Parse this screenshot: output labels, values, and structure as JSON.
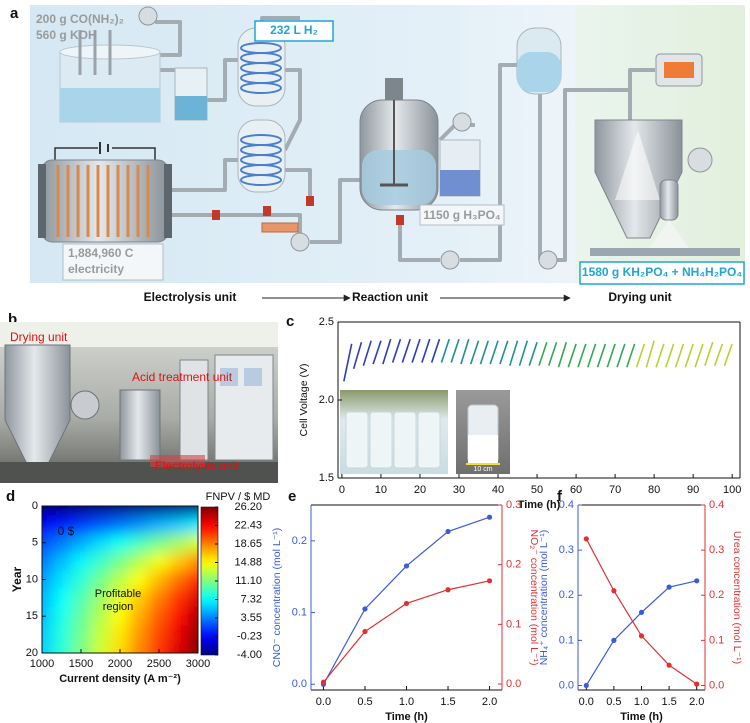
{
  "diagram": {
    "panel_label": "a",
    "feed_lines": [
      "200 g CO(NH₂)₂",
      "560 g KOH"
    ],
    "hydrogen": "232 L H₂",
    "charge_lines": [
      "1,884,960 C",
      "electricity"
    ],
    "acid": "1150 g  H₃PO₄",
    "product": "1580 g KH₂PO₄ + NH₄H₂PO₄",
    "units": [
      "Electrolysis unit",
      "Reaction unit",
      "Drying unit"
    ]
  },
  "photo": {
    "panel_label": "b",
    "labels": [
      "Drying unit",
      "Acid treatment unit",
      "Electrolysis unit"
    ]
  },
  "chart_data": [
    {
      "type": "line",
      "panel_label": "c",
      "xlabel": "Time (h)",
      "ylabel": "Cell Voltage (V)",
      "inset_label": "10 cm",
      "xlim": [
        -1,
        102
      ],
      "ylim": [
        1.5,
        2.5
      ],
      "xticks": [
        0,
        10,
        20,
        30,
        40,
        50,
        60,
        70,
        80,
        90,
        100
      ],
      "yticks": [
        1.5,
        {
          "value": 2.0,
          "label": "2.0"
        },
        2.5
      ],
      "markers": false,
      "series": [
        {
          "color": "#2b3fb8",
          "x": [
            0.5,
            2.5,
            2.7,
            3,
            5,
            5.2,
            5.5,
            7.5,
            7.7,
            8,
            10,
            10.2,
            10.5,
            12.5,
            12.7,
            13,
            15,
            15.2,
            15.5,
            17.5,
            17.7,
            18,
            20,
            20.2,
            20.5,
            22.5,
            22.7,
            23,
            25,
            25.2
          ],
          "values": [
            2.12,
            2.36,
            null,
            2.2,
            2.37,
            null,
            2.22,
            2.38,
            null,
            2.23,
            2.38,
            null,
            2.23,
            2.39,
            null,
            2.24,
            2.39,
            null,
            2.24,
            2.39,
            null,
            2.24,
            2.39,
            null,
            2.24,
            2.39,
            null,
            2.24,
            2.39,
            null
          ]
        },
        {
          "color": "#1f8f9a",
          "x": [
            25.5,
            27.5,
            27.7,
            28,
            30,
            30.2,
            30.5,
            32.5,
            32.7,
            33,
            35,
            35.2,
            35.5,
            37.5,
            37.7,
            38,
            40,
            40.2,
            40.5,
            42.5,
            42.7,
            43,
            45,
            45.2,
            45.5,
            47.5,
            47.7,
            48,
            50,
            50.2
          ],
          "values": [
            2.24,
            2.39,
            null,
            2.24,
            2.39,
            null,
            2.23,
            2.39,
            null,
            2.23,
            2.38,
            null,
            2.23,
            2.38,
            null,
            2.23,
            2.38,
            null,
            2.23,
            2.38,
            null,
            2.22,
            2.38,
            null,
            2.22,
            2.38,
            null,
            2.22,
            2.37,
            null
          ]
        },
        {
          "color": "#34a853",
          "x": [
            50.5,
            52.5,
            52.7,
            53,
            55,
            55.2,
            55.5,
            57.5,
            57.7,
            58,
            60,
            60.2,
            60.5,
            62.5,
            62.7,
            63,
            65,
            65.2,
            65.5,
            67.5,
            67.7,
            68,
            70,
            70.2,
            70.5,
            72.5,
            72.7,
            73,
            75,
            75.2
          ],
          "values": [
            2.22,
            2.37,
            null,
            2.22,
            2.37,
            null,
            2.21,
            2.37,
            null,
            2.21,
            2.36,
            null,
            2.21,
            2.36,
            null,
            2.21,
            2.36,
            null,
            2.21,
            2.36,
            null,
            2.21,
            2.36,
            null,
            2.21,
            2.36,
            null,
            2.21,
            2.36,
            null
          ]
        },
        {
          "color": "#b5d334",
          "x": [
            75.5,
            77.5,
            77.7,
            78,
            80,
            80.2,
            80.5,
            82.5,
            82.7,
            83,
            85,
            85.2,
            85.5,
            87.5,
            87.7,
            88,
            90,
            90.2,
            90.5,
            92.5,
            92.7,
            93,
            95,
            95.2,
            95.5,
            97.5,
            97.7,
            98,
            100,
            100.2
          ],
          "values": [
            2.21,
            2.36,
            null,
            2.21,
            2.38,
            null,
            2.21,
            2.36,
            null,
            2.21,
            2.36,
            null,
            2.21,
            2.36,
            null,
            2.21,
            2.36,
            null,
            2.21,
            2.36,
            null,
            2.22,
            2.37,
            null,
            2.22,
            2.36,
            null,
            2.22,
            2.36,
            null
          ]
        }
      ]
    },
    {
      "type": "heatmap",
      "panel_label": "d",
      "xlabel": "Current density (A m⁻²)",
      "ylabel": "Year",
      "colorbar_label": "FNPV / $ MD",
      "zero_contour_label": "0 $",
      "region_label": [
        "Profitable",
        "region"
      ],
      "colormap": "jet",
      "xlim": [
        1000,
        3000
      ],
      "ylim": [
        20,
        0
      ],
      "xticks": [
        1000,
        1500,
        2000,
        2500,
        3000
      ],
      "yticks": [
        0,
        5,
        10,
        15,
        20
      ],
      "clim": [
        -4,
        26.2
      ],
      "colorbar_ticks": [
        {
          "value": 26.2,
          "label": "26.20"
        },
        22.43,
        18.65,
        14.88,
        {
          "value": 11.1,
          "label": "11.10"
        },
        7.32,
        3.55,
        -0.23,
        {
          "value": -4,
          "label": "-4.00"
        }
      ],
      "x": [
        1000,
        1250,
        1500,
        1750,
        2000,
        2250,
        2500,
        2750,
        3000
      ],
      "y": [
        0,
        2.5,
        5,
        7.5,
        10,
        12.5,
        15,
        17.5,
        20
      ],
      "z": [
        [
          -4,
          -4,
          -4,
          -4,
          -4,
          -4,
          -4,
          -4,
          -4
        ],
        [
          -0.5,
          0.4,
          1.3,
          2.2,
          3.1,
          4.0,
          4.9,
          5.7,
          6.7
        ],
        [
          1.9,
          3.3,
          4.8,
          6.3,
          7.7,
          9.2,
          10.7,
          12.1,
          13.7
        ],
        [
          3.4,
          5.3,
          7.1,
          9.0,
          10.8,
          12.7,
          14.5,
          16.4,
          18.3
        ],
        [
          4.4,
          6.5,
          8.6,
          10.7,
          12.8,
          14.9,
          17.0,
          19.1,
          21.4
        ],
        [
          5.1,
          7.4,
          9.6,
          11.9,
          14.2,
          16.4,
          18.7,
          21.0,
          23.4
        ],
        [
          5.5,
          7.9,
          10.3,
          12.7,
          15.0,
          17.4,
          19.8,
          22.2,
          24.8
        ],
        [
          5.8,
          8.3,
          10.7,
          13.2,
          15.6,
          18.1,
          20.5,
          23.0,
          25.6
        ],
        [
          6.0,
          8.5,
          11.0,
          13.5,
          16.0,
          18.5,
          21.0,
          23.5,
          26.2
        ]
      ]
    },
    {
      "type": "line",
      "panel_label": "e",
      "xlabel": "Time (h)",
      "ylabel": "CNO⁻ concentration (mol L⁻¹)",
      "y2label": "NO₂⁻ concentration (mol L⁻¹)",
      "y_color": "#3b5bdb",
      "y2_color": "#e03131",
      "markers": true,
      "xlim": [
        -0.15,
        2.15
      ],
      "ylim": [
        -0.008,
        0.25
      ],
      "y2lim": [
        -0.01,
        0.3
      ],
      "xticks": [
        {
          "value": 0,
          "label": "0.0"
        },
        0.5,
        {
          "value": 1,
          "label": "1.0"
        },
        1.5,
        {
          "value": 2,
          "label": "2.0"
        }
      ],
      "yticks": [
        {
          "value": 0,
          "label": "0.0"
        },
        0.1,
        0.2
      ],
      "y2ticks": [
        {
          "value": 0,
          "label": "0.0"
        },
        0.1,
        0.2,
        0.3
      ],
      "series": [
        {
          "color": "#3b5bdb",
          "x": [
            0,
            0.5,
            1,
            1.5,
            2
          ],
          "values": [
            0,
            0.105,
            0.165,
            0.213,
            0.233
          ]
        },
        {
          "color": "#e03131",
          "axis": "y2",
          "x": [
            0,
            0.5,
            1,
            1.5,
            2
          ],
          "values": [
            0.003,
            0.088,
            0.135,
            0.158,
            0.173
          ]
        }
      ]
    },
    {
      "type": "line",
      "panel_label": "f",
      "xlabel": "Time (h)",
      "ylabel": "NH₄⁺ concentration (mol L⁻¹)",
      "y2label": "Urea concentration (mol L⁻¹)",
      "y_color": "#3b5bdb",
      "y2_color": "#e03131",
      "markers": true,
      "xlim": [
        -0.15,
        2.15
      ],
      "ylim": [
        -0.01,
        0.4
      ],
      "y2lim": [
        -0.01,
        0.4
      ],
      "xticks": [
        {
          "value": 0,
          "label": "0.0"
        },
        0.5,
        {
          "value": 1,
          "label": "1.0"
        },
        1.5,
        {
          "value": 2,
          "label": "2.0"
        }
      ],
      "yticks": [
        {
          "value": 0,
          "label": "0.0"
        },
        0.1,
        0.2,
        0.3,
        0.4
      ],
      "y2ticks": [
        {
          "value": 0,
          "label": "0.0"
        },
        0.1,
        0.2,
        0.3,
        0.4
      ],
      "series": [
        {
          "color": "#3b5bdb",
          "x": [
            0,
            0.5,
            1,
            1.5,
            2
          ],
          "values": [
            0,
            0.1,
            0.162,
            0.218,
            0.232
          ]
        },
        {
          "color": "#e03131",
          "axis": "y2",
          "x": [
            0,
            0.5,
            1,
            1.5,
            2
          ],
          "values": [
            0.325,
            0.21,
            0.11,
            0.045,
            0.003
          ]
        }
      ]
    }
  ]
}
